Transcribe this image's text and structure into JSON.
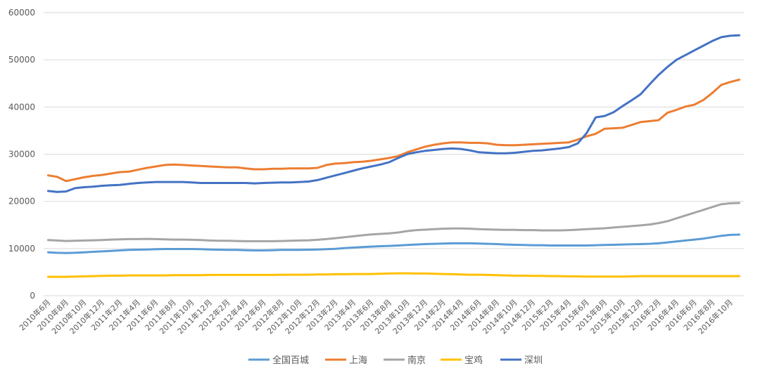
{
  "chart_data": {
    "type": "line",
    "title": "",
    "xlabel": "",
    "ylabel": "",
    "ylim": [
      0,
      60000
    ],
    "yticks": [
      0,
      10000,
      20000,
      30000,
      40000,
      50000,
      60000
    ],
    "grid": "horizontal",
    "legend_position": "bottom",
    "x": [
      "2010年6月",
      "2010年7月",
      "2010年8月",
      "2010年9月",
      "2010年10月",
      "2010年11月",
      "2010年12月",
      "2011年1月",
      "2011年2月",
      "2011年3月",
      "2011年4月",
      "2011年5月",
      "2011年6月",
      "2011年7月",
      "2011年8月",
      "2011年9月",
      "2011年10月",
      "2011年11月",
      "2011年12月",
      "2012年1月",
      "2012年2月",
      "2012年3月",
      "2012年4月",
      "2012年5月",
      "2012年6月",
      "2012年7月",
      "2012年8月",
      "2012年9月",
      "2012年10月",
      "2012年11月",
      "2012年12月",
      "2013年1月",
      "2013年2月",
      "2013年3月",
      "2013年4月",
      "2013年5月",
      "2013年6月",
      "2013年7月",
      "2013年8月",
      "2013年9月",
      "2013年10月",
      "2013年11月",
      "2013年12月",
      "2014年1月",
      "2014年2月",
      "2014年3月",
      "2014年4月",
      "2014年5月",
      "2014年6月",
      "2014年7月",
      "2014年8月",
      "2014年9月",
      "2014年10月",
      "2014年11月",
      "2014年12月",
      "2015年1月",
      "2015年2月",
      "2015年3月",
      "2015年4月",
      "2015年5月",
      "2015年6月",
      "2015年7月",
      "2015年8月",
      "2015年9月",
      "2015年10月",
      "2015年11月",
      "2015年12月",
      "2016年1月",
      "2016年2月",
      "2016年3月",
      "2016年4月",
      "2016年5月",
      "2016年6月",
      "2016年7月",
      "2016年8月",
      "2016年9月",
      "2016年10月",
      "2016年11月"
    ],
    "x_tick_labels": [
      "2010年6月",
      "2010年8月",
      "2010年10月",
      "2010年12月",
      "2011年2月",
      "2011年4月",
      "2011年6月",
      "2011年8月",
      "2011年10月",
      "2011年12月",
      "2012年2月",
      "2012年4月",
      "2012年6月",
      "2012年8月",
      "2012年10月",
      "2012年12月",
      "2013年2月",
      "2013年4月",
      "2013年6月",
      "2013年8月",
      "2013年10月",
      "2013年12月",
      "2014年2月",
      "2014年4月",
      "2014年6月",
      "2014年8月",
      "2014年10月",
      "2014年12月",
      "2015年2月",
      "2015年4月",
      "2015年6月",
      "2015年8月",
      "2015年10月",
      "2015年12月",
      "2016年2月",
      "2016年4月",
      "2016年6月",
      "2016年8月",
      "2016年10月"
    ],
    "series": [
      {
        "name": "全国百城",
        "color": "#5B9BD5",
        "values": [
          9200,
          9100,
          9050,
          9100,
          9200,
          9300,
          9400,
          9500,
          9600,
          9700,
          9750,
          9800,
          9850,
          9900,
          9900,
          9900,
          9900,
          9850,
          9800,
          9750,
          9700,
          9700,
          9650,
          9600,
          9600,
          9650,
          9700,
          9700,
          9700,
          9750,
          9800,
          9850,
          9950,
          10100,
          10200,
          10300,
          10400,
          10500,
          10550,
          10650,
          10750,
          10850,
          10950,
          11000,
          11050,
          11100,
          11100,
          11100,
          11050,
          11000,
          10950,
          10850,
          10800,
          10750,
          10700,
          10700,
          10650,
          10650,
          10650,
          10650,
          10650,
          10700,
          10750,
          10800,
          10850,
          10900,
          10950,
          11000,
          11100,
          11300,
          11500,
          11700,
          11900,
          12100,
          12400,
          12700,
          12900,
          12950
        ]
      },
      {
        "name": "上海",
        "color": "#ED7D31",
        "values": [
          25500,
          25200,
          24300,
          24700,
          25100,
          25400,
          25600,
          25900,
          26200,
          26300,
          26700,
          27100,
          27400,
          27700,
          27800,
          27700,
          27600,
          27500,
          27400,
          27300,
          27200,
          27200,
          27000,
          26800,
          26800,
          26900,
          26900,
          27000,
          27000,
          27000,
          27100,
          27700,
          28000,
          28100,
          28300,
          28400,
          28600,
          28900,
          29200,
          29600,
          30400,
          31000,
          31600,
          32000,
          32300,
          32500,
          32500,
          32400,
          32400,
          32300,
          32000,
          31900,
          31900,
          32000,
          32100,
          32200,
          32300,
          32400,
          32500,
          33100,
          33800,
          34300,
          35400,
          35500,
          35600,
          36200,
          36800,
          37000,
          37200,
          38800,
          39400,
          40100,
          40500,
          41500,
          43000,
          44700,
          45300,
          45800
        ]
      },
      {
        "name": "南京",
        "color": "#A5A5A5",
        "values": [
          11800,
          11700,
          11600,
          11650,
          11700,
          11750,
          11800,
          11900,
          11950,
          12000,
          12000,
          12050,
          12000,
          11950,
          11900,
          11900,
          11850,
          11800,
          11700,
          11650,
          11650,
          11600,
          11550,
          11550,
          11550,
          11550,
          11600,
          11650,
          11700,
          11750,
          11850,
          12000,
          12200,
          12400,
          12600,
          12800,
          13000,
          13100,
          13200,
          13400,
          13700,
          13900,
          14000,
          14100,
          14200,
          14250,
          14250,
          14200,
          14100,
          14050,
          14000,
          13950,
          13950,
          13900,
          13900,
          13850,
          13850,
          13850,
          13900,
          14000,
          14100,
          14200,
          14300,
          14450,
          14600,
          14750,
          14900,
          15100,
          15400,
          15800,
          16400,
          17000,
          17600,
          18200,
          18800,
          19400,
          19600,
          19650
        ]
      },
      {
        "name": "宝鸡",
        "color": "#FFC000",
        "values": [
          4000,
          4000,
          4000,
          4050,
          4100,
          4150,
          4200,
          4250,
          4250,
          4300,
          4300,
          4300,
          4300,
          4300,
          4350,
          4350,
          4350,
          4350,
          4400,
          4400,
          4400,
          4400,
          4400,
          4400,
          4400,
          4400,
          4450,
          4450,
          4450,
          4450,
          4500,
          4500,
          4550,
          4550,
          4600,
          4600,
          4600,
          4650,
          4700,
          4750,
          4750,
          4700,
          4700,
          4650,
          4600,
          4550,
          4500,
          4450,
          4450,
          4400,
          4350,
          4300,
          4250,
          4250,
          4200,
          4200,
          4150,
          4150,
          4100,
          4100,
          4050,
          4050,
          4050,
          4050,
          4050,
          4100,
          4150,
          4150,
          4150,
          4150,
          4150,
          4150,
          4150,
          4150,
          4150,
          4150,
          4150,
          4150
        ]
      },
      {
        "name": "深圳",
        "color": "#4472C4",
        "values": [
          22200,
          22000,
          22100,
          22800,
          23000,
          23100,
          23300,
          23400,
          23500,
          23700,
          23900,
          24000,
          24100,
          24100,
          24100,
          24100,
          24000,
          23900,
          23900,
          23900,
          23900,
          23900,
          23900,
          23800,
          23900,
          23950,
          24000,
          24000,
          24100,
          24200,
          24500,
          25000,
          25500,
          26000,
          26500,
          27000,
          27400,
          27800,
          28300,
          29200,
          30000,
          30400,
          30700,
          30900,
          31100,
          31200,
          31100,
          30800,
          30400,
          30300,
          30200,
          30200,
          30300,
          30500,
          30700,
          30800,
          31000,
          31200,
          31500,
          32300,
          34500,
          37800,
          38100,
          38900,
          40200,
          41400,
          42700,
          44800,
          46800,
          48500,
          50000,
          51000,
          52000,
          53000,
          54000,
          54800,
          55100,
          55200
        ]
      }
    ]
  }
}
